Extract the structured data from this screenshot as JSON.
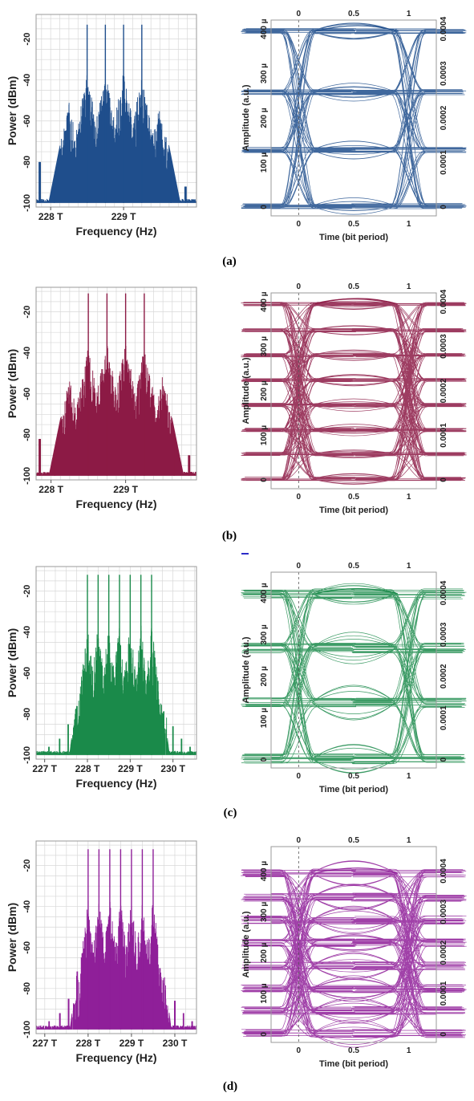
{
  "figure": {
    "captions": [
      "(a)",
      "(b)",
      "(c)",
      "(d)"
    ],
    "colors": {
      "a": "#1f4e8c",
      "b": "#8c1a45",
      "c": "#1a8a4a",
      "d": "#8f1f99",
      "grid": "#d8d8d8",
      "stray_mark": "#2c2cc8"
    }
  },
  "chart_data": [
    {
      "panel": "a",
      "kind": "spectrum",
      "type": "line",
      "xlabel": "Frequency (Hz)",
      "ylabel": "Power (dBm)",
      "xlim": [
        227.8,
        230.0
      ],
      "ylim": [
        -102,
        -8
      ],
      "xticks": [
        228,
        229
      ],
      "xtick_labels": [
        "228 T",
        "229 T"
      ],
      "yticks": [
        -20,
        -40,
        -60,
        -80,
        -100
      ],
      "ytick_labels": [
        "-20",
        "-40",
        "-60",
        "-80",
        "-100"
      ],
      "grid": true,
      "series": [
        {
          "color": "#1f4e8c",
          "carrier_lines_x": [
            228.5,
            228.75,
            229.0,
            229.25
          ],
          "carrier_peaks_dbm": [
            -13,
            -13,
            -13,
            -13
          ],
          "subcarrier_peaks_x": [
            228.25,
            228.5,
            228.75,
            229.0,
            229.25,
            229.5
          ],
          "subcarrier_peaks_dbm": [
            -50,
            -37,
            -36,
            -36,
            -37,
            -50
          ],
          "outer_peaks_x": [
            227.85,
            228.05,
            229.65,
            229.85
          ],
          "outer_peaks_dbm": [
            -80,
            -90,
            -82,
            -92
          ],
          "floor_dbm": -100
        }
      ]
    },
    {
      "panel": "a",
      "kind": "eye",
      "type": "line",
      "xlabel": "Time (bit period)",
      "ylabel": "Amplitude (a.u.)",
      "xlim": [
        -0.25,
        1.25
      ],
      "ylim": [
        -2e-05,
        0.00042
      ],
      "xticks": [
        0,
        0.5,
        1
      ],
      "xtick_labels": [
        "0",
        "0.5",
        "1"
      ],
      "yticks": [
        0,
        0.0001,
        0.0002,
        0.0003,
        0.0004
      ],
      "ytick_labels": [
        "0",
        "100 µ",
        "200 µ",
        "300 µ",
        "400 µ"
      ],
      "ytick_labels_right": [
        "0",
        "0.0001",
        "0.0002",
        "0.0003",
        "0.0004"
      ],
      "grid": false,
      "series": [
        {
          "color": "#1f4e8c",
          "levels": [
            2e-06,
            0.000128,
            0.000258,
            0.000395
          ],
          "noise": 6e-06
        }
      ]
    },
    {
      "panel": "b",
      "kind": "spectrum",
      "type": "line",
      "xlabel": "Frequency (Hz)",
      "ylabel": "Power (dBm)",
      "xlim": [
        227.8,
        229.95
      ],
      "ylim": [
        -102,
        -8
      ],
      "xticks": [
        228,
        229
      ],
      "xtick_labels": [
        "228 T",
        "229 T"
      ],
      "yticks": [
        -20,
        -40,
        -60,
        -80,
        -100
      ],
      "ytick_labels": [
        "-20",
        "-40",
        "-60",
        "-80",
        "-100"
      ],
      "grid": true,
      "series": [
        {
          "color": "#8c1a45",
          "carrier_lines_x": [
            228.5,
            228.75,
            229.0,
            229.25
          ],
          "carrier_peaks_dbm": [
            -11,
            -11,
            -11,
            -11
          ],
          "subcarrier_peaks_x": [
            228.25,
            228.5,
            228.75,
            229.0,
            229.25,
            229.5
          ],
          "subcarrier_peaks_dbm": [
            -50,
            -37,
            -35,
            -35,
            -36,
            -50
          ],
          "outer_peaks_x": [
            227.85,
            228.05,
            229.65,
            229.85
          ],
          "outer_peaks_dbm": [
            -82,
            -88,
            -82,
            -90
          ],
          "floor_dbm": -100
        }
      ]
    },
    {
      "panel": "b",
      "kind": "eye",
      "type": "line",
      "xlabel": "Time (bit period)",
      "ylabel": "Amplitude (a.u.)",
      "xlim": [
        -0.25,
        1.25
      ],
      "ylim": [
        -2e-05,
        0.00042
      ],
      "xticks": [
        0,
        0.5,
        1
      ],
      "xtick_labels": [
        "0",
        "0.5",
        "1"
      ],
      "yticks": [
        0,
        0.0001,
        0.0002,
        0.0003,
        0.0004
      ],
      "ytick_labels": [
        "0",
        "100 µ",
        "200 µ",
        "300 µ",
        "400 µ"
      ],
      "ytick_labels_right": [
        "0",
        "0.0001",
        "0.0002",
        "0.0003",
        "0.0004"
      ],
      "grid": false,
      "series": [
        {
          "color": "#8c1a45",
          "levels": [
            2e-06,
            5.8e-05,
            0.000112,
            0.000168,
            0.000224,
            0.00028,
            0.000336,
            0.000395
          ],
          "noise": 4e-06
        }
      ]
    },
    {
      "panel": "c",
      "kind": "spectrum",
      "type": "line",
      "xlabel": "Frequency (Hz)",
      "ylabel": "Power (dBm)",
      "xlim": [
        226.8,
        230.55
      ],
      "ylim": [
        -102,
        -8
      ],
      "xticks": [
        227,
        228,
        229,
        230
      ],
      "xtick_labels": [
        "227 T",
        "228 T",
        "229 T",
        "230 T"
      ],
      "yticks": [
        -20,
        -40,
        -60,
        -80,
        -100
      ],
      "ytick_labels": [
        "-20",
        "-40",
        "-60",
        "-80",
        "-100"
      ],
      "grid": true,
      "series": [
        {
          "color": "#1a8a4a",
          "carrier_lines_x": [
            228.0,
            228.25,
            228.5,
            228.75,
            229.0,
            229.25,
            229.5
          ],
          "carrier_peaks_dbm": [
            -12,
            -12,
            -12,
            -12,
            -12,
            -12,
            -12
          ],
          "subcarrier_peaks_x": [
            227.75,
            228.0,
            228.25,
            228.5,
            228.75,
            229.0,
            229.25,
            229.5,
            229.75
          ],
          "subcarrier_peaks_dbm": [
            -70,
            -36,
            -36,
            -36,
            -36,
            -36,
            -36,
            -36,
            -70
          ],
          "outer_peaks_x": [
            227.1,
            227.35,
            227.55,
            230.0,
            230.2,
            230.4
          ],
          "outer_peaks_dbm": [
            -96,
            -92,
            -85,
            -86,
            -92,
            -96
          ],
          "floor_dbm": -100
        }
      ]
    },
    {
      "panel": "c",
      "kind": "eye",
      "type": "line",
      "xlabel": "Time (bit period)",
      "ylabel": "Amplitude (a.u.)",
      "xlim": [
        -0.25,
        1.25
      ],
      "ylim": [
        -2e-05,
        0.00045
      ],
      "xticks": [
        0,
        0.5,
        1
      ],
      "xtick_labels": [
        "0",
        "0.5",
        "1"
      ],
      "yticks": [
        0,
        0.0001,
        0.0002,
        0.0003,
        0.0004
      ],
      "ytick_labels": [
        "0",
        "100 µ",
        "200 µ",
        "300 µ",
        "400 µ"
      ],
      "ytick_labels_right": [
        "0",
        "0.0001",
        "0.0002",
        "0.0003",
        "0.0004"
      ],
      "grid": false,
      "series": [
        {
          "color": "#1a8a4a",
          "levels": [
            2e-06,
            0.000137,
            0.000268,
            0.000398
          ],
          "noise": 1.2e-05
        }
      ]
    },
    {
      "panel": "d",
      "kind": "spectrum",
      "type": "line",
      "xlabel": "Frequency (Hz)",
      "ylabel": "Power (dBm)",
      "xlim": [
        226.8,
        230.5
      ],
      "ylim": [
        -102,
        -8
      ],
      "xticks": [
        227,
        228,
        229,
        230
      ],
      "xtick_labels": [
        "227 T",
        "228 T",
        "229 T",
        "230 T"
      ],
      "yticks": [
        -20,
        -40,
        -60,
        -80,
        -100
      ],
      "ytick_labels": [
        "-20",
        "-40",
        "-60",
        "-80",
        "-100"
      ],
      "grid": true,
      "series": [
        {
          "color": "#8f1f99",
          "carrier_lines_x": [
            228.0,
            228.25,
            228.5,
            228.75,
            229.0,
            229.25,
            229.5
          ],
          "carrier_peaks_dbm": [
            -12,
            -12,
            -12,
            -12,
            -12,
            -12,
            -12
          ],
          "subcarrier_peaks_x": [
            227.75,
            228.0,
            228.25,
            228.5,
            228.75,
            229.0,
            229.25,
            229.5,
            229.75
          ],
          "subcarrier_peaks_dbm": [
            -70,
            -36,
            -36,
            -36,
            -36,
            -36,
            -36,
            -36,
            -70
          ],
          "outer_peaks_x": [
            227.1,
            227.35,
            227.55,
            230.0,
            230.2,
            230.4
          ],
          "outer_peaks_dbm": [
            -96,
            -92,
            -85,
            -86,
            -92,
            -96
          ],
          "floor_dbm": -100
        }
      ]
    },
    {
      "panel": "d",
      "kind": "eye",
      "type": "line",
      "xlabel": "Time (bit period)",
      "ylabel": "Amplitude (a.u.)",
      "xlim": [
        -0.25,
        1.25
      ],
      "ylim": [
        -2e-05,
        0.00046
      ],
      "xticks": [
        0,
        0.5,
        1
      ],
      "xtick_labels": [
        "0",
        "0.5",
        "1"
      ],
      "yticks": [
        0,
        0.0001,
        0.0002,
        0.0003,
        0.0004
      ],
      "ytick_labels": [
        "0",
        "100 µ",
        "200 µ",
        "300 µ",
        "400 µ"
      ],
      "ytick_labels_right": [
        "0",
        "0.0001",
        "0.0002",
        "0.0003",
        "0.0004"
      ],
      "grid": false,
      "series": [
        {
          "color": "#8f1f99",
          "levels": [
            2e-06,
            5.8e-05,
            0.000112,
            0.000168,
            0.000224,
            0.00028,
            0.000336,
            0.000395
          ],
          "noise": 1e-05
        }
      ]
    }
  ]
}
